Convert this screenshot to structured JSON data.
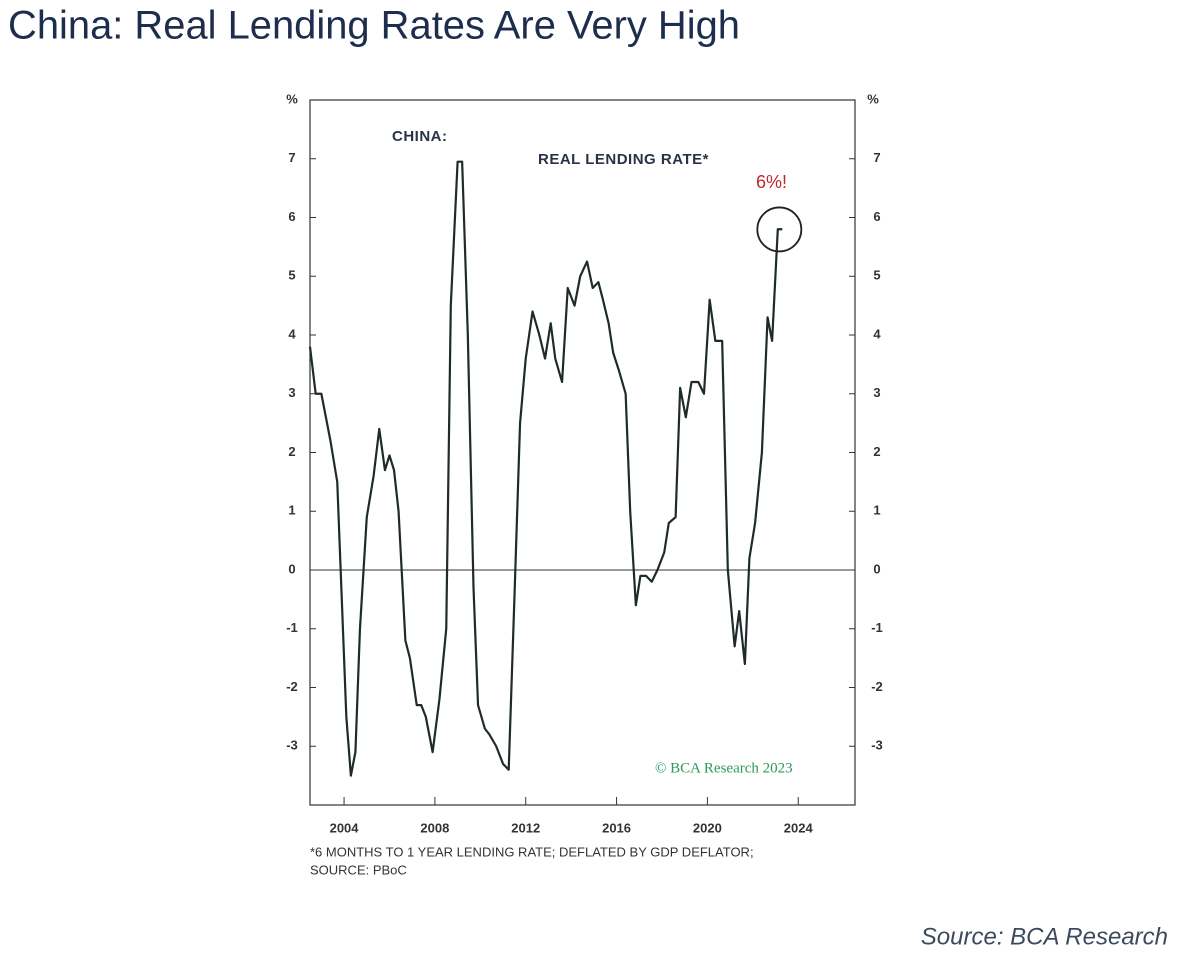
{
  "chart_data": {
    "type": "line",
    "title": "China: Real Lending Rates Are Very High",
    "y_label": "%",
    "annotations": [
      "CHINA:",
      "REAL LENDING RATE*",
      "6%!",
      "© BCA Research 2023"
    ],
    "footnote": [
      "*6 MONTHS TO 1 YEAR LENDING RATE; DEFLATED BY GDP DEFLATOR;",
      "SOURCE: PBoC"
    ],
    "source": "Source: BCA Research",
    "xlim": [
      2002.5,
      2026.5
    ],
    "xticks": [
      2004,
      2008,
      2012,
      2016,
      2020,
      2024
    ],
    "ylim": [
      -4,
      8
    ],
    "yticks": [
      -3,
      -2,
      -1,
      0,
      1,
      2,
      3,
      4,
      5,
      6,
      7
    ],
    "y2lim": [
      -4,
      8
    ],
    "y2ticks": [
      -3,
      -2,
      -1,
      0,
      1,
      2,
      3,
      4,
      5,
      6,
      7
    ],
    "grid": false,
    "series": [
      {
        "name": "Real lending rate",
        "color": "#1f2b2b",
        "x": [
          2002.5,
          2002.75,
          2003.0,
          2003.4,
          2003.7,
          2003.9,
          2004.1,
          2004.3,
          2004.5,
          2004.7,
          2005.0,
          2005.3,
          2005.55,
          2005.8,
          2006.0,
          2006.2,
          2006.4,
          2006.7,
          2006.9,
          2007.2,
          2007.4,
          2007.6,
          2007.9,
          2008.2,
          2008.5,
          2008.7,
          2009.0,
          2009.2,
          2009.45,
          2009.7,
          2009.9,
          2010.2,
          2010.4,
          2010.7,
          2011.0,
          2011.25,
          2011.5,
          2011.75,
          2012.0,
          2012.3,
          2012.6,
          2012.85,
          2013.1,
          2013.3,
          2013.6,
          2013.85,
          2014.15,
          2014.4,
          2014.7,
          2014.95,
          2015.2,
          2015.4,
          2015.65,
          2015.85,
          2016.1,
          2016.4,
          2016.6,
          2016.85,
          2017.05,
          2017.3,
          2017.55,
          2017.8,
          2018.1,
          2018.3,
          2018.6,
          2018.8,
          2019.05,
          2019.3,
          2019.6,
          2019.85,
          2020.1,
          2020.35,
          2020.65,
          2020.9,
          2021.2,
          2021.4,
          2021.65,
          2021.85,
          2022.1,
          2022.4,
          2022.65,
          2022.85,
          2023.1,
          2023.3
        ],
        "values": [
          3.8,
          3.0,
          3.0,
          2.2,
          1.5,
          -0.5,
          -2.5,
          -3.5,
          -3.1,
          -1.0,
          0.9,
          1.6,
          2.4,
          1.7,
          1.95,
          1.7,
          1.0,
          -1.2,
          -1.5,
          -2.3,
          -2.3,
          -2.5,
          -3.1,
          -2.2,
          -1.0,
          4.5,
          6.95,
          6.95,
          4.0,
          -0.3,
          -2.3,
          -2.7,
          -2.8,
          -3.0,
          -3.3,
          -3.4,
          -0.5,
          2.5,
          3.6,
          4.4,
          4.0,
          3.6,
          4.2,
          3.6,
          3.2,
          4.8,
          4.5,
          5.0,
          5.25,
          4.8,
          4.9,
          4.6,
          4.2,
          3.7,
          3.4,
          3.0,
          1.0,
          -0.6,
          -0.1,
          -0.1,
          -0.2,
          0.0,
          0.3,
          0.8,
          0.9,
          3.1,
          2.6,
          3.2,
          3.2,
          3.0,
          4.6,
          3.9,
          3.9,
          0.0,
          -1.3,
          -0.7,
          -1.6,
          0.2,
          0.8,
          2.0,
          4.3,
          3.9,
          5.8,
          5.8
        ]
      }
    ]
  }
}
